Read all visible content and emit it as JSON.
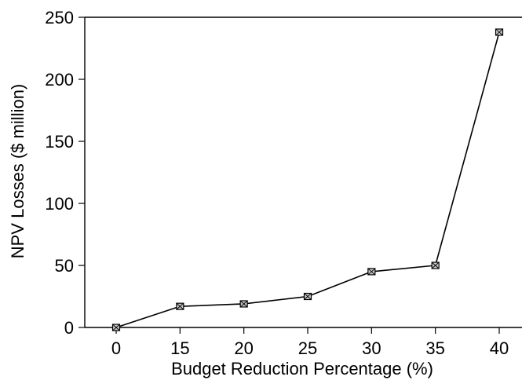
{
  "chart_data": {
    "type": "line",
    "xlabel": "Budget Reduction Percentage (%)",
    "ylabel": "NPV Losses ($ million)",
    "categories": [
      "0",
      "15",
      "20",
      "25",
      "30",
      "35",
      "40"
    ],
    "yticks": [
      "0",
      "50",
      "100",
      "150",
      "200",
      "250"
    ],
    "ylim": [
      0,
      250
    ],
    "grid": false,
    "legend": "none",
    "series": [
      {
        "values": [
          0,
          17,
          19,
          25,
          45,
          50,
          238
        ]
      }
    ],
    "colors": {
      "line": "#000000",
      "marker_fill": "#c8c8c8"
    }
  }
}
